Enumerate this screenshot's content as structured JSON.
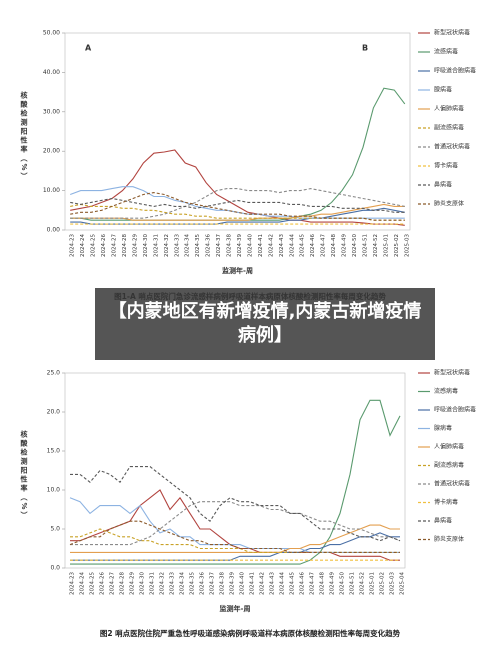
{
  "banner": "【内蒙地区有新增疫情,内蒙古新增疫情病例】",
  "chart_data": [
    {
      "type": "line",
      "title": "图1-A 哨点医院门急诊流感样病例呼吸道样本病原体核酸检测阳性率每周变化趋势",
      "panel_labels": [
        "A",
        "B"
      ],
      "x_label": "监测年-周",
      "y_label": "核酸检测阳性率（%）",
      "ylim": [
        0,
        50
      ],
      "yticks": [
        {
          "value": 0,
          "label": "0.00"
        },
        {
          "value": 10,
          "label": "10.00"
        },
        {
          "value": 20,
          "label": "20.00"
        },
        {
          "value": 30,
          "label": "30.00"
        },
        {
          "value": 40,
          "label": "40.00"
        },
        {
          "value": 50,
          "label": "50.00"
        }
      ],
      "categories": [
        "2024-23",
        "2024-24",
        "2024-25",
        "2024-26",
        "2024-27",
        "2024-28",
        "2024-29",
        "2024-30",
        "2024-31",
        "2024-32",
        "2024-33",
        "2024-34",
        "2024-35",
        "2024-36",
        "2024-37",
        "2024-38",
        "2024-39",
        "2024-40",
        "2024-41",
        "2024-42",
        "2024-43",
        "2024-44",
        "2024-45",
        "2024-46",
        "2024-47",
        "2024-48",
        "2024-49",
        "2024-50",
        "2024-51",
        "2024-52",
        "2025-01",
        "2025-02",
        "2025-03"
      ],
      "series": [
        {
          "name": "新型冠状病毒",
          "color": "#b2443f",
          "dash": false,
          "values": [
            5,
            5.5,
            6,
            7,
            8,
            10,
            13,
            17,
            19.5,
            19.8,
            20.3,
            17,
            16,
            12,
            9,
            7.5,
            6,
            4.5,
            4,
            3.5,
            3,
            2.5,
            2.5,
            2,
            2,
            2,
            2,
            2,
            1.8,
            1.5,
            1.5,
            1.5,
            1.2
          ]
        },
        {
          "name": "流感病毒",
          "color": "#5a9a6e",
          "dash": false,
          "values": [
            3,
            3,
            2.5,
            2.5,
            2.5,
            2.5,
            2.5,
            2.5,
            2.5,
            2.5,
            2.5,
            2.5,
            2.5,
            2.5,
            2.5,
            2.5,
            2.5,
            2.5,
            2.5,
            2.5,
            2.5,
            3,
            3.5,
            4,
            5,
            7,
            10,
            14,
            21,
            31,
            36,
            35.5,
            32
          ]
        },
        {
          "name": "呼吸道合胞病毒",
          "color": "#4a6fa5",
          "dash": false,
          "values": [
            2,
            2,
            1.5,
            1.5,
            1.5,
            1.5,
            1.5,
            1.5,
            1.5,
            1.5,
            1.5,
            1.5,
            1.5,
            1.5,
            1.5,
            2,
            2,
            2,
            2,
            2,
            2,
            2.5,
            2.5,
            3,
            3,
            3.5,
            4,
            4.5,
            5,
            5,
            5.5,
            5,
            4.5
          ]
        },
        {
          "name": "腺病毒",
          "color": "#8db3e2",
          "dash": false,
          "values": [
            9,
            10,
            10,
            10,
            10.5,
            11,
            11,
            10,
            8.5,
            8.5,
            7.5,
            7,
            6,
            5.5,
            5,
            5,
            4.5,
            4,
            4,
            3.5,
            3.5,
            3.5,
            3,
            3,
            3,
            3,
            3,
            3,
            3,
            3,
            3,
            3,
            3
          ]
        },
        {
          "name": "人偏肺病毒",
          "color": "#e39f4f",
          "dash": false,
          "values": [
            3,
            3,
            3,
            3,
            3,
            3,
            2.5,
            2.5,
            2.5,
            2.5,
            2.5,
            2.5,
            2.5,
            2.5,
            2.5,
            2.5,
            2.5,
            2.5,
            3,
            3,
            3,
            3,
            3.5,
            3.5,
            4,
            4,
            4.5,
            5,
            5.5,
            6,
            6.5,
            6,
            6
          ]
        },
        {
          "name": "副流感病毒",
          "color": "#c9a227",
          "dash": true,
          "values": [
            6,
            6.5,
            6,
            6,
            6,
            5.5,
            5.5,
            5,
            5,
            4.5,
            4,
            4,
            3.5,
            3.5,
            3,
            3,
            3,
            3,
            3,
            3,
            3,
            3,
            3,
            3,
            3,
            3,
            3,
            3,
            3,
            2.5,
            2.5,
            2.5,
            2.5
          ]
        },
        {
          "name": "普通冠状病毒",
          "color": "#8a8a8a",
          "dash": true,
          "values": [
            3,
            3,
            3,
            3,
            3,
            3,
            3,
            3,
            3.5,
            4,
            5,
            6,
            7,
            8.5,
            10,
            10.5,
            10.5,
            10,
            10,
            10,
            9.5,
            10,
            10,
            10.5,
            10,
            9.5,
            9,
            8.5,
            8,
            7.5,
            7,
            6.5,
            6
          ]
        },
        {
          "name": "博卡病毒",
          "color": "#f0c040",
          "dash": true,
          "values": [
            1.5,
            1.5,
            1.5,
            1.5,
            1.5,
            1.5,
            1.5,
            1.5,
            1.5,
            1.5,
            1.5,
            1.5,
            1.5,
            1.5,
            1.5,
            1.5,
            1.5,
            1.5,
            1.5,
            1.5,
            1.5,
            1.5,
            1.5,
            1.5,
            1.5,
            1.5,
            1.5,
            1.5,
            1.5,
            1.5,
            1.5,
            1.5,
            1.5
          ]
        },
        {
          "name": "鼻病毒",
          "color": "#595959",
          "dash": true,
          "values": [
            7,
            6.5,
            7,
            7.5,
            8,
            7.5,
            7,
            6.5,
            6,
            6.5,
            6,
            6,
            5.5,
            6,
            6.5,
            7,
            7.5,
            7,
            7,
            7,
            7,
            6.5,
            6.5,
            6,
            6,
            6,
            5.5,
            5.5,
            5.5,
            5,
            5,
            4.5,
            4.5
          ]
        },
        {
          "name": "肺炎支原体",
          "color": "#8b5a2b",
          "dash": true,
          "values": [
            4,
            4.5,
            4.5,
            5,
            6,
            7,
            8,
            9,
            9.5,
            9,
            8,
            7,
            6.5,
            6,
            5.5,
            5,
            4.5,
            4,
            4,
            4,
            4,
            3.5,
            3.5,
            3.5,
            3,
            3,
            3,
            3,
            3,
            2.5,
            2.5,
            2.5,
            2.5
          ]
        }
      ]
    },
    {
      "type": "line",
      "title": "图2 哨点医院住院严重急性呼吸道感染病例呼吸道样本病原体核酸检测阳性率每周变化趋势",
      "x_label": "监测年-周",
      "y_label": "核酸检测阳性率（%）",
      "ylim": [
        0,
        25
      ],
      "yticks": [
        {
          "value": 0,
          "label": "0.0"
        },
        {
          "value": 5,
          "label": "5.0"
        },
        {
          "value": 10,
          "label": "10.0"
        },
        {
          "value": 15,
          "label": "15.0"
        },
        {
          "value": 20,
          "label": "20.0"
        },
        {
          "value": 25,
          "label": "25.0"
        }
      ],
      "categories": [
        "2024-23",
        "2024-24",
        "2024-25",
        "2024-26",
        "2024-27",
        "2024-28",
        "2024-29",
        "2024-30",
        "2024-31",
        "2024-32",
        "2024-33",
        "2024-34",
        "2024-35",
        "2024-36",
        "2024-37",
        "2024-38",
        "2024-39",
        "2024-40",
        "2024-41",
        "2024-42",
        "2024-43",
        "2024-44",
        "2024-45",
        "2024-46",
        "2024-47",
        "2024-48",
        "2024-49",
        "2024-50",
        "2024-51",
        "2024-52",
        "2025-01",
        "2025-02",
        "2025-03",
        "2025-04"
      ],
      "series": [
        {
          "name": "新型冠状病毒",
          "color": "#b2443f",
          "dash": false,
          "values": [
            3.5,
            3.5,
            4,
            4.5,
            5,
            5.5,
            6,
            8,
            9,
            10,
            7.5,
            9,
            7,
            5,
            5,
            4,
            3,
            2.5,
            2.5,
            2,
            2,
            2,
            2,
            2,
            2,
            2,
            2,
            1.5,
            1.5,
            1.5,
            1.5,
            1.5,
            1,
            1
          ]
        },
        {
          "name": "流感病毒",
          "color": "#5a9a6e",
          "dash": false,
          "values": [
            0.5,
            0.5,
            0.5,
            0.5,
            0.5,
            0.5,
            0.5,
            0.5,
            0.5,
            0.5,
            0.5,
            0.5,
            0.5,
            0.5,
            0.5,
            0.5,
            0.5,
            0.5,
            0.5,
            0.5,
            0.5,
            0.5,
            0.5,
            0.5,
            1,
            2,
            4,
            7,
            12,
            19,
            21.5,
            21.5,
            17,
            19.5
          ]
        },
        {
          "name": "呼吸道合胞病毒",
          "color": "#4a6fa5",
          "dash": false,
          "values": [
            1,
            1,
            1,
            1,
            1,
            1,
            1,
            1,
            1,
            1,
            1,
            1,
            1,
            1,
            1,
            1,
            1,
            1.5,
            1.5,
            1.5,
            1.5,
            2,
            2,
            2,
            2.5,
            2.5,
            3,
            3,
            3.5,
            4,
            4,
            4.5,
            4,
            4
          ]
        },
        {
          "name": "腺病毒",
          "color": "#8db3e2",
          "dash": false,
          "values": [
            9,
            8.5,
            7,
            8,
            8,
            8,
            7,
            8,
            6,
            4.5,
            5,
            4,
            4,
            3,
            3,
            3,
            3,
            3,
            2.5,
            2.5,
            2.5,
            2.5,
            2.5,
            2.5,
            2,
            2,
            2,
            2,
            2,
            2,
            2,
            2,
            2,
            2
          ]
        },
        {
          "name": "人偏肺病毒",
          "color": "#e39f4f",
          "dash": false,
          "values": [
            2,
            2,
            2,
            2,
            2,
            2,
            2,
            2,
            2,
            2,
            2,
            2,
            2,
            2,
            2,
            2,
            2,
            2,
            2,
            2,
            2,
            2,
            2.5,
            2.5,
            3,
            3,
            3.5,
            4,
            4.5,
            5,
            5.5,
            5.5,
            5,
            5
          ]
        },
        {
          "name": "副流感病毒",
          "color": "#c9a227",
          "dash": true,
          "values": [
            4,
            4,
            4.5,
            5,
            4.5,
            4,
            4,
            3.5,
            3.5,
            3,
            3,
            3,
            3,
            2.5,
            2.5,
            2.5,
            2.5,
            2.5,
            2,
            2,
            2,
            2,
            2,
            2,
            2,
            2,
            2,
            2,
            2,
            2,
            2,
            2,
            2,
            2
          ]
        },
        {
          "name": "普通冠状病毒",
          "color": "#8a8a8a",
          "dash": true,
          "values": [
            3,
            3,
            3,
            3,
            3,
            3,
            3,
            3.5,
            4,
            5,
            6,
            7,
            8,
            8.5,
            8.5,
            8.5,
            8.5,
            8,
            8,
            8,
            7.5,
            7.5,
            7,
            7,
            6.5,
            6,
            6,
            5.5,
            5,
            5,
            4.5,
            4,
            4,
            3.5
          ]
        },
        {
          "name": "博卡病毒",
          "color": "#f0c040",
          "dash": true,
          "values": [
            1,
            1,
            1,
            1,
            1,
            1,
            1,
            1,
            1,
            1,
            1,
            1,
            1,
            1,
            1,
            1,
            1,
            1,
            1,
            1,
            1,
            1,
            1,
            1,
            1,
            1,
            1,
            1,
            1,
            1,
            1,
            1,
            1,
            1
          ]
        },
        {
          "name": "鼻病毒",
          "color": "#595959",
          "dash": true,
          "values": [
            12,
            12,
            11,
            12.5,
            12,
            11,
            13,
            13,
            13,
            12,
            11,
            10,
            9,
            7,
            6,
            8,
            9,
            8.5,
            8.5,
            8,
            8,
            8,
            7,
            7,
            6,
            5,
            5,
            5,
            4.5,
            4,
            4,
            3.5,
            4,
            3.5
          ]
        },
        {
          "name": "肺炎支原体",
          "color": "#8b5a2b",
          "dash": true,
          "values": [
            3,
            3.5,
            4,
            4,
            5,
            5.5,
            6,
            6,
            5.5,
            5,
            4.5,
            4,
            3.5,
            3.5,
            3,
            3,
            3,
            2.5,
            2.5,
            2.5,
            2.5,
            2.5,
            2,
            2,
            2,
            2,
            2,
            2,
            2,
            2,
            2,
            2,
            2,
            2
          ]
        }
      ]
    }
  ]
}
